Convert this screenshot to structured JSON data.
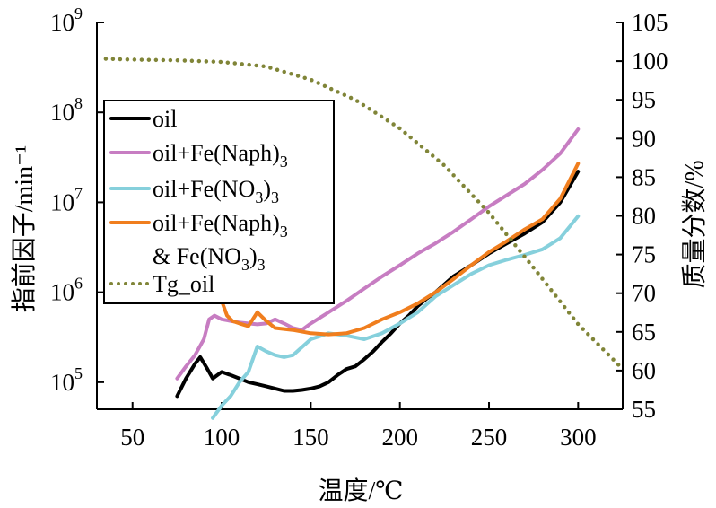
{
  "chart_data": {
    "type": "line",
    "xlabel": "温度/℃",
    "ylabel_left": "指前因子/min⁻¹",
    "ylabel_right": "质量分数/%",
    "xlim": [
      30,
      325
    ],
    "ylim_left": [
      50000,
      1000000000
    ],
    "ylim_right": [
      55,
      105
    ],
    "yscale_left": "log",
    "x_ticks": [
      "50",
      "100",
      "150",
      "200",
      "250",
      "300"
    ],
    "y_right_ticks": [
      "55",
      "60",
      "65",
      "70",
      "75",
      "80",
      "85",
      "90",
      "95",
      "100",
      "105"
    ],
    "y_left_ticks": [
      {
        "base": "10",
        "exp": "5"
      },
      {
        "base": "10",
        "exp": "6"
      },
      {
        "base": "10",
        "exp": "7"
      },
      {
        "base": "10",
        "exp": "8"
      },
      {
        "base": "10",
        "exp": "9"
      }
    ],
    "legend_position": "upper-left",
    "series": [
      {
        "name": "oil",
        "color": "#000000",
        "axis": "left",
        "dash": "solid",
        "x": [
          75,
          80,
          85,
          88,
          92,
          95,
          100,
          105,
          110,
          115,
          120,
          125,
          130,
          135,
          140,
          145,
          150,
          155,
          160,
          165,
          170,
          175,
          180,
          185,
          190,
          195,
          200,
          205,
          210,
          215,
          220,
          230,
          240,
          250,
          260,
          270,
          280,
          290,
          300
        ],
        "y": [
          70000,
          110000,
          160000,
          190000,
          140000,
          110000,
          130000,
          120000,
          110000,
          100000,
          95000,
          90000,
          85000,
          80000,
          80000,
          82000,
          85000,
          90000,
          100000,
          120000,
          140000,
          150000,
          180000,
          220000,
          280000,
          350000,
          450000,
          550000,
          700000,
          850000,
          1000000,
          1500000,
          2000000,
          2700000,
          3500000,
          4500000,
          6000000,
          10000000,
          22000000
        ]
      },
      {
        "name": "oil+Fe(Naph)₃",
        "color": "#c77dc2",
        "axis": "left",
        "dash": "solid",
        "x": [
          75,
          80,
          85,
          90,
          93,
          96,
          100,
          105,
          110,
          115,
          120,
          125,
          130,
          135,
          140,
          145,
          150,
          160,
          170,
          180,
          190,
          200,
          210,
          220,
          230,
          240,
          250,
          260,
          270,
          280,
          290,
          300
        ],
        "y": [
          110000,
          150000,
          200000,
          300000,
          500000,
          550000,
          500000,
          480000,
          460000,
          450000,
          440000,
          450000,
          500000,
          450000,
          400000,
          380000,
          450000,
          600000,
          800000,
          1100000,
          1500000,
          2000000,
          2700000,
          3500000,
          4700000,
          6500000,
          9000000,
          12000000,
          16000000,
          23000000,
          35000000,
          65000000
        ]
      },
      {
        "name": "oil+Fe(NO₃)₃",
        "color": "#86d0dc",
        "axis": "left",
        "dash": "solid",
        "x": [
          95,
          100,
          105,
          110,
          115,
          120,
          125,
          130,
          135,
          140,
          150,
          160,
          170,
          180,
          190,
          200,
          210,
          220,
          230,
          240,
          250,
          260,
          270,
          280,
          290,
          300
        ],
        "y": [
          40000,
          55000,
          70000,
          100000,
          130000,
          250000,
          220000,
          200000,
          190000,
          200000,
          300000,
          350000,
          330000,
          300000,
          350000,
          450000,
          600000,
          900000,
          1200000,
          1600000,
          2000000,
          2300000,
          2600000,
          3000000,
          4000000,
          7000000
        ]
      },
      {
        "name": "oil+Fe(Naph)₃ & Fe(NO₃)₃",
        "color": "#f07e1e",
        "axis": "left",
        "dash": "solid",
        "x": [
          100,
          103,
          106,
          110,
          115,
          120,
          125,
          130,
          140,
          150,
          160,
          170,
          180,
          190,
          200,
          210,
          220,
          230,
          240,
          250,
          260,
          270,
          280,
          290,
          300
        ],
        "y": [
          800000,
          550000,
          480000,
          450000,
          420000,
          600000,
          480000,
          400000,
          380000,
          350000,
          340000,
          350000,
          400000,
          500000,
          600000,
          750000,
          1000000,
          1400000,
          2000000,
          2800000,
          3700000,
          5000000,
          6500000,
          11000000,
          27000000
        ]
      },
      {
        "name": "Tg_oil",
        "color": "#808538",
        "axis": "right",
        "dash": "dotted",
        "x": [
          35,
          50,
          75,
          100,
          125,
          150,
          175,
          200,
          225,
          250,
          275,
          300,
          325
        ],
        "y": [
          100.3,
          100.2,
          100.1,
          99.9,
          99.3,
          97.6,
          95.0,
          91.3,
          86.5,
          80.4,
          73.3,
          66.0,
          60.2
        ]
      }
    ],
    "legend": [
      {
        "type": "simple",
        "text": "oil",
        "color": "#000000",
        "dash": "solid"
      },
      {
        "type": "sub",
        "before": "oil+Fe(Naph)",
        "sub": "3",
        "after": "",
        "color": "#c77dc2",
        "dash": "solid"
      },
      {
        "type": "nested",
        "before": "oil+Fe(NO",
        "sub1": "3",
        "mid": ")",
        "sub2": "3",
        "color": "#86d0dc",
        "dash": "solid"
      },
      {
        "type": "sub",
        "before": "oil+Fe(Naph)",
        "sub": "3",
        "after": "",
        "color": "#f07e1e",
        "dash": "solid"
      },
      {
        "type": "nested",
        "before": "& Fe(NO",
        "sub1": "3",
        "mid": ")",
        "sub2": "3",
        "color": "",
        "dash": "none"
      },
      {
        "type": "simple",
        "text": "Tg_oil",
        "color": "#808538",
        "dash": "dotted"
      }
    ]
  }
}
